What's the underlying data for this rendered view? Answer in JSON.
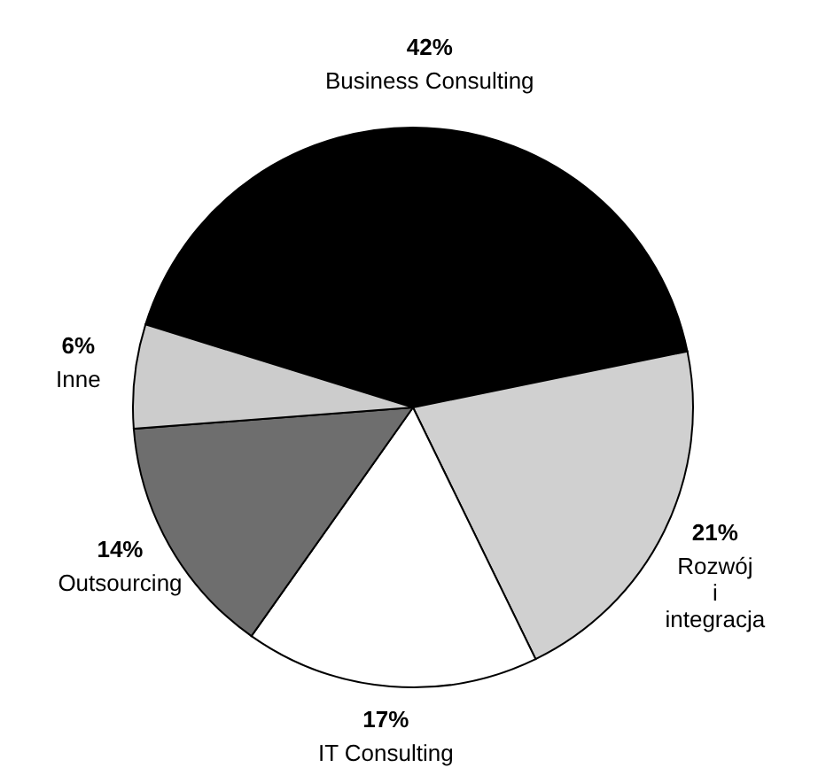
{
  "chart_data": {
    "type": "pie",
    "categories": [
      "Business Consulting",
      "Rozwój i integracja",
      "IT Consulting",
      "Outsourcing",
      "Inne"
    ],
    "values": [
      42,
      21,
      17,
      14,
      6
    ],
    "colors": [
      "#000000",
      "#d0d0d0",
      "#ffffff",
      "#6e6e6e",
      "#cccccc"
    ],
    "value_labels": [
      "42%",
      "21%",
      "17%",
      "14%",
      "6%"
    ]
  }
}
